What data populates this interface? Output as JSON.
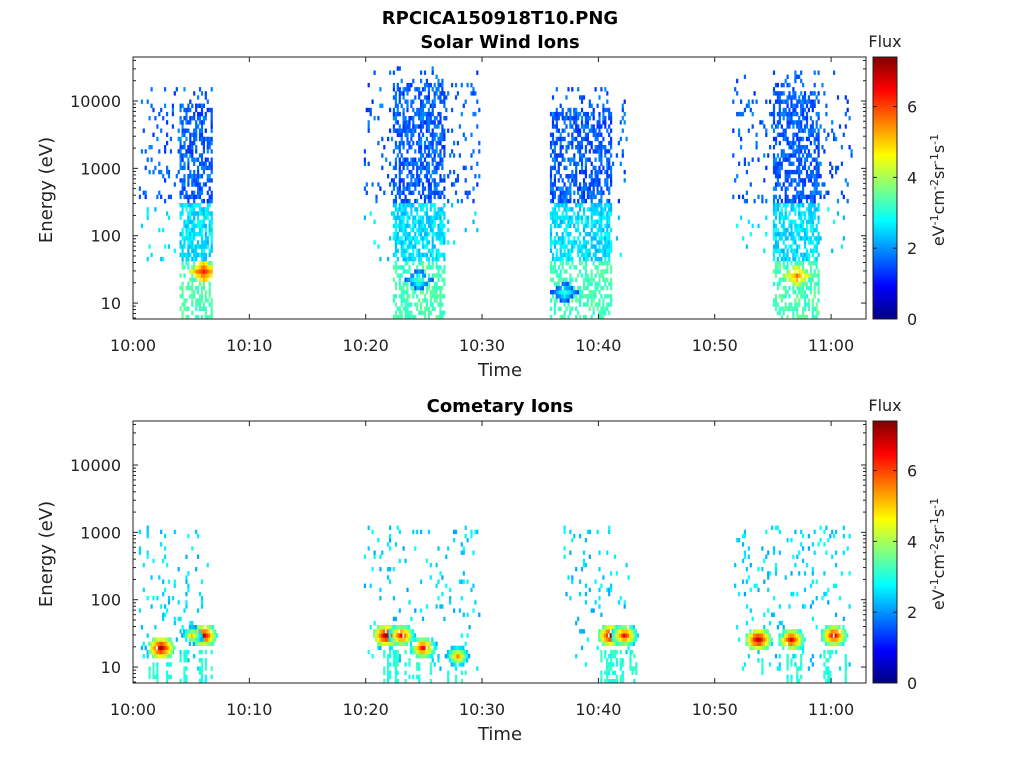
{
  "figure": {
    "title": "RPCICA150918T10.PNG"
  },
  "colorbar": {
    "label": "Flux",
    "units_label": "eV-1cm-2sr-1s-1",
    "range": [
      0,
      7.4
    ],
    "ticks": [
      "0",
      "2",
      "4",
      "6"
    ]
  },
  "chart_data": [
    {
      "type": "heatmap",
      "title": "Solar Wind Ions",
      "xlabel": "Time",
      "ylabel": "Energy (eV)",
      "y_scale": "log",
      "ylim": [
        5.8,
        45000
      ],
      "xlim": [
        "10:00",
        "11:03"
      ],
      "x_ticks": [
        "10:00",
        "10:10",
        "10:20",
        "10:30",
        "10:40",
        "10:50",
        "11:00"
      ],
      "y_ticks": [
        "10",
        "100",
        "1000",
        "10000"
      ],
      "bursts": [
        {
          "start": "10:00:30",
          "end": "10:06:50",
          "core_start": "10:03:50",
          "core_end": "10:07:00",
          "max_energy": 15000,
          "peak_energy": 30,
          "peak_time": "10:06:00",
          "peak_flux": 6.0
        },
        {
          "start": "10:19:50",
          "end": "10:29:50",
          "core_start": "10:22:20",
          "core_end": "10:26:50",
          "max_energy": 30000,
          "peak_energy": 22,
          "peak_time": "10:24:30",
          "peak_flux": 3.2
        },
        {
          "start": "10:35:50",
          "end": "10:42:20",
          "core_start": "10:35:50",
          "core_end": "10:41:00",
          "max_energy": 14000,
          "peak_energy": 14,
          "peak_time": "10:37:00",
          "peak_flux": 3.0
        },
        {
          "start": "10:51:30",
          "end": "11:01:40",
          "core_start": "10:54:50",
          "core_end": "10:58:50",
          "max_energy": 25000,
          "peak_energy": 25,
          "peak_time": "10:57:00",
          "peak_flux": 5.4
        }
      ]
    },
    {
      "type": "heatmap",
      "title": "Cometary Ions",
      "xlabel": "Time",
      "ylabel": "Energy (eV)",
      "y_scale": "log",
      "ylim": [
        5.8,
        45000
      ],
      "xlim": [
        "10:00",
        "11:03"
      ],
      "x_ticks": [
        "10:00",
        "10:10",
        "10:20",
        "10:30",
        "10:40",
        "10:50",
        "11:00"
      ],
      "y_ticks": [
        "10",
        "100",
        "1000",
        "10000"
      ],
      "hotspots": [
        {
          "time": "10:02:20",
          "energy": 20,
          "flux": 7.2
        },
        {
          "time": "10:06:00",
          "energy": 30,
          "flux": 7.0
        },
        {
          "time": "10:05:00",
          "energy": 30,
          "flux": 5.0
        },
        {
          "time": "10:21:40",
          "energy": 30,
          "flux": 7.2
        },
        {
          "time": "10:23:00",
          "energy": 30,
          "flux": 6.5
        },
        {
          "time": "10:24:50",
          "energy": 20,
          "flux": 6.5
        },
        {
          "time": "10:27:50",
          "energy": 15,
          "flux": 5.5
        },
        {
          "time": "10:41:00",
          "energy": 30,
          "flux": 7.2
        },
        {
          "time": "10:42:10",
          "energy": 30,
          "flux": 6.5
        },
        {
          "time": "10:53:40",
          "energy": 25,
          "flux": 7.2
        },
        {
          "time": "10:56:30",
          "energy": 25,
          "flux": 6.8
        },
        {
          "time": "11:00:10",
          "energy": 30,
          "flux": 6.8
        }
      ],
      "sparse_high_energy": [
        {
          "start": "10:00:30",
          "end": "10:06:30",
          "max_energy": 1200
        },
        {
          "start": "10:19:50",
          "end": "10:29:50",
          "max_energy": 1200
        },
        {
          "start": "10:37:00",
          "end": "10:42:30",
          "max_energy": 1100
        },
        {
          "start": "10:51:30",
          "end": "11:01:40",
          "max_energy": 1200
        }
      ]
    }
  ]
}
